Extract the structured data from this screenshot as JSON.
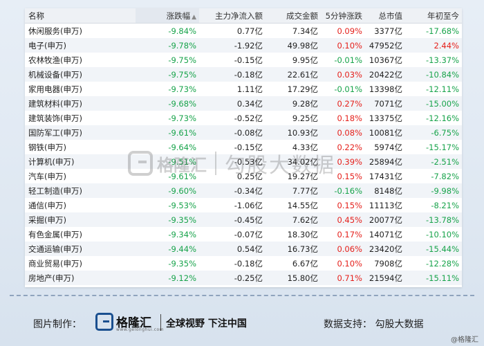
{
  "table": {
    "headers": {
      "name": "名称",
      "change": "涨跌幅",
      "sort_indicator": "▲",
      "net_inflow": "主力净流入额",
      "volume": "成交金额",
      "five_min": "5分钟涨跌",
      "market_cap": "总市值",
      "ytd": "年初至今"
    },
    "rows": [
      {
        "name": "休闲服务(申万)",
        "change": "-9.84%",
        "net_inflow": "0.77亿",
        "volume": "7.34亿",
        "five_min": "0.09%",
        "market_cap": "3377亿",
        "ytd": "-17.68%"
      },
      {
        "name": "电子(申万)",
        "change": "-9.78%",
        "net_inflow": "-1.92亿",
        "volume": "49.98亿",
        "five_min": "0.10%",
        "market_cap": "47952亿",
        "ytd": "2.44%"
      },
      {
        "name": "农林牧渔(申万)",
        "change": "-9.75%",
        "net_inflow": "-0.15亿",
        "volume": "9.95亿",
        "five_min": "-0.01%",
        "market_cap": "10367亿",
        "ytd": "-13.37%"
      },
      {
        "name": "机械设备(申万)",
        "change": "-9.75%",
        "net_inflow": "-0.18亿",
        "volume": "22.61亿",
        "five_min": "0.03%",
        "market_cap": "20422亿",
        "ytd": "-10.84%"
      },
      {
        "name": "家用电器(申万)",
        "change": "-9.73%",
        "net_inflow": "1.11亿",
        "volume": "17.29亿",
        "five_min": "-0.01%",
        "market_cap": "13398亿",
        "ytd": "-12.11%"
      },
      {
        "name": "建筑材料(申万)",
        "change": "-9.68%",
        "net_inflow": "0.34亿",
        "volume": "9.28亿",
        "five_min": "0.27%",
        "market_cap": "7071亿",
        "ytd": "-15.00%"
      },
      {
        "name": "建筑装饰(申万)",
        "change": "-9.73%",
        "net_inflow": "-0.52亿",
        "volume": "9.25亿",
        "five_min": "0.18%",
        "market_cap": "13375亿",
        "ytd": "-12.16%"
      },
      {
        "name": "国防军工(申万)",
        "change": "-9.61%",
        "net_inflow": "-0.08亿",
        "volume": "10.93亿",
        "five_min": "0.08%",
        "market_cap": "10081亿",
        "ytd": "-6.75%"
      },
      {
        "name": "钢铁(申万)",
        "change": "-9.64%",
        "net_inflow": "-0.15亿",
        "volume": "4.33亿",
        "five_min": "0.22%",
        "market_cap": "5974亿",
        "ytd": "-15.17%"
      },
      {
        "name": "计算机(申万)",
        "change": "-9.51%",
        "net_inflow": "-0.53亿",
        "volume": "34.02亿",
        "five_min": "0.39%",
        "market_cap": "25894亿",
        "ytd": "-2.51%"
      },
      {
        "name": "汽车(申万)",
        "change": "-9.61%",
        "net_inflow": "0.25亿",
        "volume": "19.27亿",
        "five_min": "0.15%",
        "market_cap": "17431亿",
        "ytd": "-7.82%"
      },
      {
        "name": "轻工制造(申万)",
        "change": "-9.60%",
        "net_inflow": "-0.34亿",
        "volume": "7.77亿",
        "five_min": "-0.16%",
        "market_cap": "8148亿",
        "ytd": "-9.98%"
      },
      {
        "name": "通信(申万)",
        "change": "-9.53%",
        "net_inflow": "-1.06亿",
        "volume": "14.55亿",
        "five_min": "0.15%",
        "market_cap": "11113亿",
        "ytd": "-8.21%"
      },
      {
        "name": "采掘(申万)",
        "change": "-9.35%",
        "net_inflow": "-0.45亿",
        "volume": "7.62亿",
        "five_min": "0.45%",
        "market_cap": "20077亿",
        "ytd": "-13.78%"
      },
      {
        "name": "有色金属(申万)",
        "change": "-9.34%",
        "net_inflow": "-0.07亿",
        "volume": "18.30亿",
        "five_min": "0.17%",
        "market_cap": "14071亿",
        "ytd": "-10.10%"
      },
      {
        "name": "交通运输(申万)",
        "change": "-9.44%",
        "net_inflow": "0.54亿",
        "volume": "16.73亿",
        "five_min": "0.06%",
        "market_cap": "23420亿",
        "ytd": "-15.44%"
      },
      {
        "name": "商业贸易(申万)",
        "change": "-9.35%",
        "net_inflow": "-0.18亿",
        "volume": "6.67亿",
        "five_min": "0.10%",
        "market_cap": "7908亿",
        "ytd": "-12.28%"
      },
      {
        "name": "房地产(申万)",
        "change": "-9.12%",
        "net_inflow": "-0.25亿",
        "volume": "15.80亿",
        "five_min": "0.71%",
        "market_cap": "21594亿",
        "ytd": "-15.11%"
      }
    ]
  },
  "colors": {
    "positive": "#e5211c",
    "negative": "#17a34a",
    "brand": "#1a4f8f"
  },
  "watermark": {
    "brand": "格隆汇",
    "partner": "勾股大数据"
  },
  "footer": {
    "maker_label": "图片制作：",
    "brand": "格隆汇",
    "brand_url": "www.gelonghui.com",
    "slogan": "全球视野 下注中国",
    "support": "数据支持： 勾股大数据",
    "corner_mark": "@格隆汇"
  }
}
